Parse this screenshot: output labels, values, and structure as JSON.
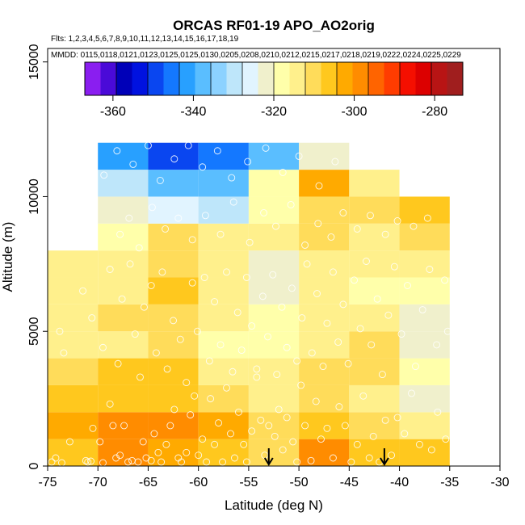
{
  "chart_data": {
    "type": "heatmap",
    "title": "ORCAS RF01-19 APO_AO2orig",
    "flights_label": "Flts: 1,2,3,4,5,6,7,8,9,10,11,12,13,14,15,16,17,18,19",
    "dates_label": "MMDD: 0115,0118,0121,0123,0125,0125,0130,0205,0208,0210,0212,0215,0217,0218,0219,0222,0224,0225,0229",
    "xlabel": "Latitude (deg N)",
    "ylabel": "Altitude (m)",
    "xlim": [
      -75,
      -30
    ],
    "ylim": [
      0,
      15500
    ],
    "x_ticks": [
      -75,
      -70,
      -65,
      -60,
      -55,
      -50,
      -45,
      -40,
      -35,
      -30
    ],
    "y_ticks": [
      0,
      5000,
      10000,
      15000
    ],
    "x_bin_edges": [
      -75,
      -70,
      -65,
      -60,
      -55,
      -50,
      -45,
      -40,
      -35
    ],
    "y_bin_edges": [
      0,
      1000,
      2000,
      3000,
      4000,
      5000,
      6000,
      7000,
      8000,
      9000,
      10000,
      11000,
      12000
    ],
    "cells": [
      [
        15,
        17,
        16,
        15,
        14,
        17,
        15,
        15
      ],
      [
        16,
        17,
        17,
        16,
        14,
        15,
        14,
        13
      ],
      [
        15,
        15,
        15,
        14,
        13,
        14,
        13,
        11
      ],
      [
        14,
        15,
        15,
        13,
        13,
        14,
        14,
        12
      ],
      [
        13,
        13,
        14,
        12,
        12,
        13,
        14,
        11
      ],
      [
        13,
        14,
        14,
        13,
        12,
        13,
        13,
        11
      ],
      [
        13,
        13,
        15,
        13,
        11,
        13,
        12,
        12
      ],
      [
        13,
        13,
        14,
        13,
        11,
        13,
        13,
        13
      ],
      [
        null,
        12,
        14,
        13,
        13,
        14,
        13,
        14
      ],
      [
        null,
        11,
        10,
        9,
        12,
        14,
        14,
        15
      ],
      [
        null,
        9,
        7,
        7,
        12,
        16,
        13,
        null
      ],
      [
        null,
        6,
        4,
        5,
        7,
        11,
        null,
        null
      ]
    ],
    "colorbar": {
      "min": -367,
      "max": -273,
      "ticks": [
        -360,
        -340,
        -320,
        -300,
        -280
      ],
      "colors": [
        "#8A1EF0",
        "#4A0AD8",
        "#0000B8",
        "#0012E0",
        "#0A46F0",
        "#1478FF",
        "#28A0FF",
        "#5ABEFF",
        "#8CD2FF",
        "#BEE6FA",
        "#E1F4FF",
        "#F0F0CC",
        "#FFFFAA",
        "#FFF08C",
        "#FFDC5A",
        "#FFC81E",
        "#FFAA00",
        "#FF8C00",
        "#FF6400",
        "#FF3C00",
        "#F50F00",
        "#DC0000",
        "#B81414",
        "#A01E1E"
      ]
    },
    "points": [
      [
        -74.6,
        150
      ],
      [
        -74.2,
        300
      ],
      [
        -73.6,
        120
      ],
      [
        -72.8,
        900
      ],
      [
        -71.2,
        200
      ],
      [
        -71.0,
        150
      ],
      [
        -70.7,
        180
      ],
      [
        -70.5,
        1400
      ],
      [
        -69.8,
        900
      ],
      [
        -69.5,
        120
      ],
      [
        -68.8,
        2300
      ],
      [
        -68.5,
        1500
      ],
      [
        -68.2,
        300
      ],
      [
        -67.8,
        400
      ],
      [
        -67.4,
        1500
      ],
      [
        -67.0,
        150
      ],
      [
        -66.6,
        200
      ],
      [
        -66.0,
        150
      ],
      [
        -65.5,
        900
      ],
      [
        -65.2,
        300
      ],
      [
        -64.7,
        200
      ],
      [
        -64.4,
        1200
      ],
      [
        -64.0,
        500
      ],
      [
        -63.7,
        150
      ],
      [
        -63.2,
        800
      ],
      [
        -62.8,
        1500
      ],
      [
        -62.4,
        2100
      ],
      [
        -62.0,
        300
      ],
      [
        -61.7,
        150
      ],
      [
        -61.2,
        500
      ],
      [
        -60.8,
        1900
      ],
      [
        -60.4,
        2600
      ],
      [
        -60.0,
        400
      ],
      [
        -59.6,
        1000
      ],
      [
        -59.2,
        150
      ],
      [
        -58.8,
        2500
      ],
      [
        -58.4,
        800
      ],
      [
        -58.0,
        1600
      ],
      [
        -57.6,
        150
      ],
      [
        -57.2,
        2900
      ],
      [
        -56.8,
        1200
      ],
      [
        -56.4,
        300
      ],
      [
        -56.0,
        2000
      ],
      [
        -55.5,
        800
      ],
      [
        -55.2,
        150
      ],
      [
        -54.7,
        1300
      ],
      [
        -54.2,
        3300
      ],
      [
        -53.8,
        1700
      ],
      [
        -53.4,
        400
      ],
      [
        -53.0,
        1500
      ],
      [
        -52.4,
        1100
      ],
      [
        -52.0,
        2100
      ],
      [
        -51.6,
        600
      ],
      [
        -51.2,
        1800
      ],
      [
        -50.6,
        900
      ],
      [
        -50.2,
        150
      ],
      [
        -49.8,
        3000
      ],
      [
        -49.4,
        1500
      ],
      [
        -48.8,
        200
      ],
      [
        -48.3,
        2400
      ],
      [
        -47.8,
        1000
      ],
      [
        -47.2,
        1400
      ],
      [
        -46.6,
        300
      ],
      [
        -46.0,
        2200
      ],
      [
        -45.4,
        1500
      ],
      [
        -44.8,
        150
      ],
      [
        -44.2,
        800
      ],
      [
        -43.6,
        2600
      ],
      [
        -43.0,
        300
      ],
      [
        -42.6,
        1100
      ],
      [
        -42.0,
        150
      ],
      [
        -41.4,
        1700
      ],
      [
        -40.8,
        400
      ],
      [
        -40.2,
        1800
      ],
      [
        -39.5,
        1200
      ],
      [
        -38.8,
        2700
      ],
      [
        -38.0,
        800
      ],
      [
        -36.8,
        600
      ],
      [
        -36.2,
        2000
      ],
      [
        -35.4,
        1000
      ],
      [
        -73.8,
        5000
      ],
      [
        -73.4,
        4200
      ],
      [
        -71.5,
        6500
      ],
      [
        -70.6,
        5500
      ],
      [
        -69.5,
        4400
      ],
      [
        -68.8,
        7300
      ],
      [
        -68.0,
        3800
      ],
      [
        -67.6,
        6200
      ],
      [
        -66.8,
        7500
      ],
      [
        -66.3,
        4900
      ],
      [
        -65.8,
        3300
      ],
      [
        -65.4,
        5900
      ],
      [
        -64.7,
        6700
      ],
      [
        -64.2,
        4200
      ],
      [
        -63.6,
        7200
      ],
      [
        -63.1,
        3600
      ],
      [
        -62.5,
        5400
      ],
      [
        -61.8,
        4700
      ],
      [
        -61.2,
        3100
      ],
      [
        -60.6,
        6800
      ],
      [
        -60.1,
        5000
      ],
      [
        -59.4,
        7000
      ],
      [
        -58.9,
        3900
      ],
      [
        -58.4,
        6100
      ],
      [
        -57.8,
        4500
      ],
      [
        -57.2,
        7200
      ],
      [
        -56.6,
        3500
      ],
      [
        -56.1,
        5700
      ],
      [
        -55.7,
        4300
      ],
      [
        -55.2,
        7000
      ],
      [
        -54.7,
        5200
      ],
      [
        -54.2,
        3600
      ],
      [
        -53.6,
        6300
      ],
      [
        -53.1,
        4800
      ],
      [
        -52.6,
        7100
      ],
      [
        -52.2,
        3400
      ],
      [
        -51.7,
        5900
      ],
      [
        -51.2,
        4400
      ],
      [
        -50.7,
        6600
      ],
      [
        -50.2,
        3900
      ],
      [
        -49.7,
        5500
      ],
      [
        -49.2,
        7500
      ],
      [
        -48.7,
        4200
      ],
      [
        -48.2,
        6400
      ],
      [
        -47.6,
        3700
      ],
      [
        -47.2,
        5300
      ],
      [
        -46.6,
        7200
      ],
      [
        -46.1,
        4600
      ],
      [
        -45.6,
        6000
      ],
      [
        -45.1,
        3800
      ],
      [
        -44.5,
        6900
      ],
      [
        -43.9,
        5100
      ],
      [
        -43.3,
        7600
      ],
      [
        -42.8,
        4500
      ],
      [
        -42.2,
        6200
      ],
      [
        -41.7,
        3400
      ],
      [
        -41.1,
        5600
      ],
      [
        -40.5,
        7400
      ],
      [
        -39.8,
        4900
      ],
      [
        -39.2,
        6700
      ],
      [
        -38.4,
        3700
      ],
      [
        -37.7,
        5800
      ],
      [
        -37.0,
        7300
      ],
      [
        -36.3,
        4500
      ],
      [
        -35.5,
        6900
      ],
      [
        -35.2,
        5000
      ],
      [
        -67.8,
        8600
      ],
      [
        -66.9,
        9200
      ],
      [
        -65.9,
        8100
      ],
      [
        -64.6,
        9600
      ],
      [
        -63.3,
        8800
      ],
      [
        -62.0,
        9200
      ],
      [
        -60.6,
        8400
      ],
      [
        -59.3,
        9300
      ],
      [
        -57.8,
        8600
      ],
      [
        -56.5,
        9800
      ],
      [
        -54.9,
        8300
      ],
      [
        -53.5,
        9400
      ],
      [
        -52.3,
        8900
      ],
      [
        -50.8,
        9700
      ],
      [
        -49.4,
        8200
      ],
      [
        -48.1,
        9000
      ],
      [
        -46.8,
        8500
      ],
      [
        -45.6,
        9400
      ],
      [
        -44.2,
        8800
      ],
      [
        -42.9,
        9300
      ],
      [
        -41.4,
        8600
      ],
      [
        -40.2,
        9100
      ],
      [
        -38.6,
        8900
      ],
      [
        -37.2,
        9200
      ],
      [
        -69.4,
        10800
      ],
      [
        -68.1,
        11700
      ],
      [
        -66.5,
        11200
      ],
      [
        -65.0,
        11900
      ],
      [
        -63.8,
        10600
      ],
      [
        -62.4,
        11400
      ],
      [
        -61.0,
        11900
      ],
      [
        -59.6,
        11100
      ],
      [
        -58.1,
        11700
      ],
      [
        -56.7,
        10700
      ],
      [
        -55.1,
        11300
      ],
      [
        -53.3,
        11800
      ],
      [
        -51.6,
        10900
      ],
      [
        -50.0,
        11500
      ],
      [
        -48.0,
        10400
      ],
      [
        -46.4,
        11300
      ]
    ],
    "arrow_latitudes": [
      -53,
      -41.5
    ]
  }
}
